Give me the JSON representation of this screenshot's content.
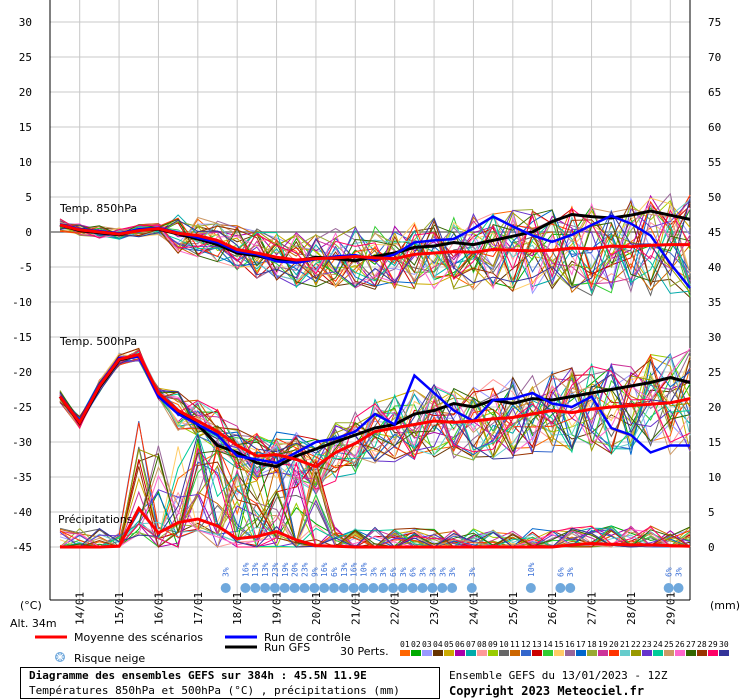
{
  "chart_data": {
    "type": "line",
    "title": "Diagramme des ensembles GEFS sur 384h : 45.5N 11.9E",
    "subtitle": "Températures 850hPa et 500hPa (°C) , précipitations (mm)",
    "run_info": "Ensemble GEFS du 13/01/2023 - 12Z",
    "copyright": "Copyright 2023 Meteociel.fr",
    "altitude": "Alt. 34m",
    "left_axis_unit": "(°C)",
    "right_axis_unit": "(mm)",
    "ylim_left": [
      -45,
      30
    ],
    "ylim_right": [
      0,
      75
    ],
    "left_ticks": [
      30,
      25,
      20,
      15,
      10,
      5,
      0,
      -5,
      -10,
      -15,
      -20,
      -25,
      -30,
      -35,
      -40,
      -45
    ],
    "right_ticks": [
      75,
      70,
      65,
      60,
      55,
      50,
      45,
      40,
      35,
      30,
      25,
      20,
      15,
      10,
      5,
      0
    ],
    "x_ticks": [
      "14/01",
      "15/01",
      "16/01",
      "17/01",
      "18/01",
      "19/01",
      "20/01",
      "21/01",
      "22/01",
      "23/01",
      "24/01",
      "25/01",
      "26/01",
      "27/01",
      "28/01",
      "29/01"
    ],
    "sections": [
      "Temp. 850hPa",
      "Temp. 500hPa",
      "Précipitations"
    ],
    "grid": true,
    "legend": {
      "mean": "Moyenne des scénarios",
      "control": "Run de contrôle",
      "gfs": "Run GFS",
      "snow": "Risque neige",
      "perts_label": "30 Perts.",
      "pert_ids": [
        "01",
        "02",
        "03",
        "04",
        "05",
        "06",
        "07",
        "08",
        "09",
        "10",
        "11",
        "12",
        "13",
        "14",
        "15",
        "16",
        "17",
        "18",
        "19",
        "20",
        "21",
        "22",
        "23",
        "24",
        "25",
        "26",
        "27",
        "28",
        "29",
        "30"
      ]
    },
    "colors": {
      "mean": "#ff0000",
      "control": "#0000ff",
      "gfs": "#000000",
      "snow": "#6fa8dc",
      "perts": [
        "#ff6600",
        "#00aa00",
        "#9999ff",
        "#663300",
        "#ccaa00",
        "#aa00aa",
        "#00aaaa",
        "#ff9999",
        "#99cc00",
        "#666666",
        "#cc6600",
        "#3366cc",
        "#cc0000",
        "#33cc33",
        "#ffcc66",
        "#996699",
        "#0066cc",
        "#99aa33",
        "#cc3399",
        "#ff3300",
        "#66cccc",
        "#999900",
        "#6633cc",
        "#00cc99",
        "#cc9966",
        "#ff66cc",
        "#336600",
        "#993300",
        "#ff0066",
        "#333399"
      ]
    },
    "x_range_hours": [
      0,
      384
    ],
    "series": [
      {
        "name": "Moyenne des scénarios",
        "level": "850hPa",
        "x": [
          0,
          12,
          24,
          36,
          48,
          60,
          72,
          84,
          96,
          108,
          120,
          132,
          144,
          156,
          168,
          180,
          192,
          204,
          216,
          228,
          240,
          252,
          264,
          276,
          288,
          300,
          312,
          324,
          336,
          348,
          360,
          372,
          384
        ],
        "values": [
          1.0,
          0.3,
          0.0,
          -0.3,
          0.2,
          0.5,
          -0.2,
          -0.5,
          -1.2,
          -2.5,
          -3.0,
          -3.6,
          -4.0,
          -3.8,
          -3.7,
          -3.5,
          -3.7,
          -3.8,
          -3.2,
          -3.0,
          -2.8,
          -2.9,
          -2.5,
          -2.6,
          -2.7,
          -2.6,
          -2.3,
          -2.4,
          -2.0,
          -2.1,
          -1.9,
          -1.8,
          -1.8
        ]
      },
      {
        "name": "Run de contrôle",
        "level": "850hPa",
        "x": [
          0,
          12,
          24,
          36,
          48,
          60,
          72,
          84,
          96,
          108,
          120,
          132,
          144,
          156,
          168,
          180,
          192,
          204,
          216,
          228,
          240,
          252,
          264,
          276,
          288,
          300,
          312,
          324,
          336,
          348,
          360,
          372,
          384
        ],
        "values": [
          1.1,
          0.4,
          0.1,
          -0.2,
          0.4,
          0.6,
          -0.1,
          -0.8,
          -1.5,
          -2.8,
          -3.2,
          -4.2,
          -4.4,
          -3.9,
          -3.5,
          -3.3,
          -4.0,
          -3.2,
          -1.5,
          -1.2,
          -1.0,
          0.5,
          2.2,
          0.8,
          -0.5,
          -1.4,
          -0.4,
          1.0,
          2.3,
          1.2,
          -0.5,
          -4.5,
          -8.0
        ]
      },
      {
        "name": "Run GFS",
        "level": "850hPa",
        "x": [
          0,
          12,
          24,
          36,
          48,
          60,
          72,
          84,
          96,
          108,
          120,
          132,
          144,
          156,
          168,
          180,
          192,
          204,
          216,
          228,
          240,
          252,
          264,
          276,
          288,
          300,
          312,
          324,
          336,
          348,
          360,
          372,
          384
        ],
        "values": [
          1.0,
          0.2,
          -0.1,
          -0.4,
          0.3,
          0.4,
          -0.3,
          -1.0,
          -1.8,
          -3.0,
          -3.4,
          -4.0,
          -4.2,
          -3.6,
          -3.8,
          -4.1,
          -3.5,
          -3.0,
          -2.2,
          -2.0,
          -1.5,
          -1.8,
          -1.2,
          -0.6,
          0.0,
          1.5,
          2.5,
          2.2,
          2.0,
          2.4,
          3.0,
          2.4,
          1.8
        ]
      },
      {
        "name": "Moyenne des scénarios",
        "level": "500hPa",
        "x": [
          0,
          12,
          24,
          36,
          48,
          60,
          72,
          84,
          96,
          108,
          120,
          132,
          144,
          156,
          168,
          180,
          192,
          204,
          216,
          228,
          240,
          252,
          264,
          276,
          288,
          300,
          312,
          324,
          336,
          348,
          360,
          372,
          384
        ],
        "values": [
          -23.5,
          -27.2,
          -22.0,
          -18.2,
          -17.5,
          -23.0,
          -25.5,
          -27.0,
          -28.5,
          -30.5,
          -32.0,
          -31.8,
          -32.5,
          -33.5,
          -31.5,
          -30.2,
          -28.5,
          -28.0,
          -27.5,
          -27.0,
          -27.2,
          -27.0,
          -26.7,
          -26.5,
          -26.0,
          -25.5,
          -25.8,
          -25.3,
          -25.0,
          -24.8,
          -24.6,
          -24.4,
          -23.8
        ]
      },
      {
        "name": "Run de contrôle",
        "level": "500hPa",
        "x": [
          0,
          12,
          24,
          36,
          48,
          60,
          72,
          84,
          96,
          108,
          120,
          132,
          144,
          156,
          168,
          180,
          192,
          204,
          216,
          228,
          240,
          252,
          264,
          276,
          288,
          300,
          312,
          324,
          336,
          348,
          360,
          372,
          384
        ],
        "values": [
          -23.5,
          -27.0,
          -21.8,
          -18.0,
          -17.8,
          -23.5,
          -26.0,
          -27.5,
          -29.0,
          -32.0,
          -32.5,
          -33.0,
          -31.5,
          -30.0,
          -29.5,
          -28.5,
          -26.0,
          -27.5,
          -20.5,
          -23.0,
          -25.5,
          -27.0,
          -24.0,
          -23.8,
          -23.0,
          -24.5,
          -25.0,
          -23.5,
          -28.0,
          -29.0,
          -31.5,
          -30.5,
          -30.5
        ]
      },
      {
        "name": "Run GFS",
        "level": "500hPa",
        "x": [
          0,
          12,
          24,
          36,
          48,
          60,
          72,
          84,
          96,
          108,
          120,
          132,
          144,
          156,
          168,
          180,
          192,
          204,
          216,
          228,
          240,
          252,
          264,
          276,
          288,
          300,
          312,
          324,
          336,
          348,
          360,
          372,
          384
        ],
        "values": [
          -23.5,
          -27.3,
          -22.2,
          -18.3,
          -17.6,
          -23.2,
          -25.8,
          -27.5,
          -30.5,
          -31.5,
          -33.0,
          -33.5,
          -32.0,
          -31.0,
          -30.0,
          -29.0,
          -28.0,
          -27.5,
          -26.0,
          -25.5,
          -24.5,
          -25.0,
          -24.0,
          -24.5,
          -23.8,
          -24.0,
          -23.5,
          -23.0,
          -22.5,
          -22.0,
          -21.5,
          -20.8,
          -21.5
        ]
      },
      {
        "name": "Moyenne des scénarios",
        "level": "precip",
        "x": [
          0,
          12,
          24,
          36,
          48,
          60,
          72,
          84,
          96,
          108,
          120,
          132,
          144,
          156,
          168,
          180,
          192,
          204,
          216,
          228,
          240,
          252,
          264,
          276,
          288,
          300,
          312,
          324,
          336,
          348,
          360,
          372,
          384
        ],
        "values": [
          0,
          0,
          0,
          0.1,
          5.5,
          2.0,
          3.5,
          4.0,
          3.0,
          1.2,
          1.5,
          2.2,
          1.0,
          0.2,
          0.1,
          0,
          0,
          0,
          0,
          0,
          0,
          0,
          0,
          0,
          0,
          0,
          0.3,
          0.5,
          0.4,
          0.3,
          0.3,
          0.2,
          0.1
        ]
      }
    ],
    "snow_markers": [
      {
        "x": 101,
        "label": "3%"
      },
      {
        "x": 113,
        "label": "16%"
      },
      {
        "x": 119,
        "label": "13%"
      },
      {
        "x": 125,
        "label": "13%"
      },
      {
        "x": 131,
        "label": "23%"
      },
      {
        "x": 137,
        "label": "19%"
      },
      {
        "x": 143,
        "label": "20%"
      },
      {
        "x": 149,
        "label": "23%"
      },
      {
        "x": 155,
        "label": "9%"
      },
      {
        "x": 161,
        "label": "16%"
      },
      {
        "x": 167,
        "label": "6%"
      },
      {
        "x": 173,
        "label": "13%"
      },
      {
        "x": 179,
        "label": "16%"
      },
      {
        "x": 185,
        "label": "10%"
      },
      {
        "x": 191,
        "label": "3%"
      },
      {
        "x": 197,
        "label": "3%"
      },
      {
        "x": 203,
        "label": "6%"
      },
      {
        "x": 209,
        "label": "3%"
      },
      {
        "x": 215,
        "label": "6%"
      },
      {
        "x": 221,
        "label": "3%"
      },
      {
        "x": 227,
        "label": "3%"
      },
      {
        "x": 233,
        "label": "3%"
      },
      {
        "x": 239,
        "label": "3%"
      },
      {
        "x": 251,
        "label": "3%"
      },
      {
        "x": 287,
        "label": "10%"
      },
      {
        "x": 305,
        "label": "6%"
      },
      {
        "x": 311,
        "label": "3%"
      },
      {
        "x": 371,
        "label": "6%"
      },
      {
        "x": 377,
        "label": "3%"
      }
    ]
  }
}
